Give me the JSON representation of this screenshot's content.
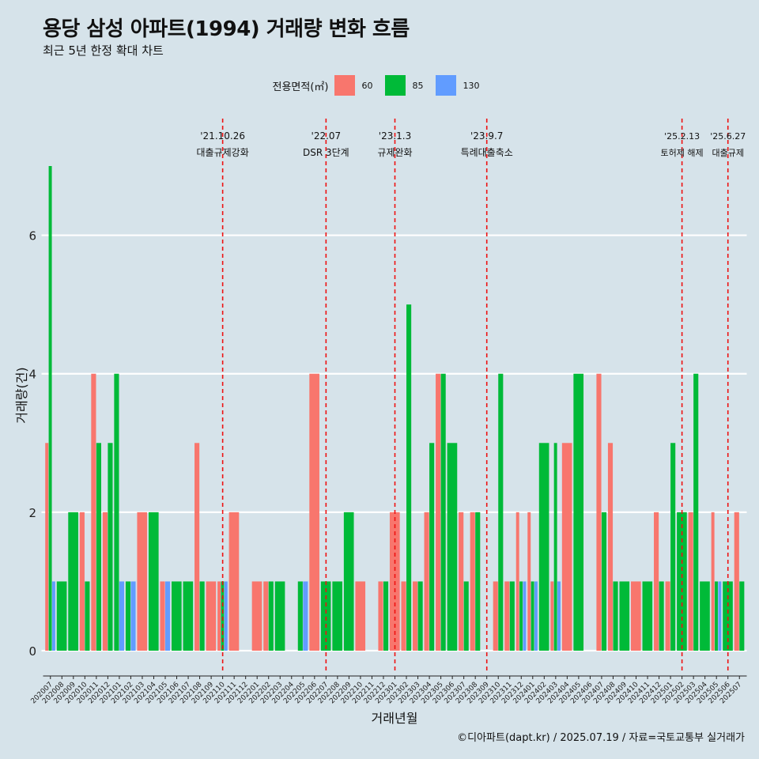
{
  "title": "용당 삼성 아파트(1994) 거래량 변화 흐름",
  "subtitle": "최근 5년 한정 확대 차트",
  "caption": "©디아파트(dapt.kr) / 2025.07.19 / 자료=국토교통부 실거래가",
  "legend": {
    "title": "전용면적(㎡)",
    "items": [
      {
        "label": "60",
        "color": "#F8766D"
      },
      {
        "label": "85",
        "color": "#00BA38"
      },
      {
        "label": "130",
        "color": "#619CFF"
      }
    ]
  },
  "chart_data": {
    "type": "bar",
    "title": "용당 삼성 아파트(1994) 거래량 변화 흐름",
    "subtitle": "최근 5년 한정 확대 차트",
    "xlabel": "거래년월",
    "ylabel": "거래량(건)",
    "ylim": [
      0,
      7
    ],
    "yticks": [
      0,
      2,
      4,
      6
    ],
    "grid": true,
    "legend_position": "top",
    "categories": [
      "202007",
      "202008",
      "202009",
      "202010",
      "202011",
      "202012",
      "202101",
      "202102",
      "202103",
      "202104",
      "202105",
      "202106",
      "202107",
      "202108",
      "202109",
      "202110",
      "202111",
      "202112",
      "202201",
      "202202",
      "202203",
      "202204",
      "202205",
      "202206",
      "202207",
      "202208",
      "202209",
      "202210",
      "202211",
      "202212",
      "202301",
      "202302",
      "202303",
      "202304",
      "202305",
      "202306",
      "202307",
      "202308",
      "202309",
      "202310",
      "202311",
      "202312",
      "202401",
      "202402",
      "202403",
      "202404",
      "202405",
      "202406",
      "202407",
      "202408",
      "202409",
      "202410",
      "202411",
      "202412",
      "202501",
      "202502",
      "202503",
      "202504",
      "202505",
      "202506",
      "202507"
    ],
    "series": [
      {
        "name": "60",
        "color": "#F8766D",
        "values": [
          3,
          0,
          0,
          2,
          4,
          2,
          0,
          0,
          2,
          0,
          1,
          0,
          0,
          3,
          1,
          1,
          2,
          0,
          1,
          1,
          0,
          0,
          0,
          4,
          0,
          0,
          0,
          1,
          0,
          1,
          2,
          1,
          1,
          2,
          4,
          0,
          2,
          2,
          0,
          1,
          1,
          2,
          2,
          0,
          1,
          3,
          0,
          0,
          4,
          3,
          0,
          1,
          0,
          2,
          1,
          0,
          2,
          0,
          2,
          0,
          2
        ]
      },
      {
        "name": "85",
        "color": "#00BA38",
        "values": [
          7,
          1,
          2,
          1,
          3,
          3,
          4,
          1,
          0,
          2,
          0,
          1,
          1,
          1,
          0,
          1,
          0,
          0,
          0,
          1,
          1,
          0,
          1,
          0,
          1,
          1,
          2,
          0,
          0,
          1,
          0,
          5,
          1,
          3,
          4,
          3,
          1,
          2,
          0,
          4,
          1,
          1,
          1,
          3,
          3,
          0,
          4,
          0,
          2,
          1,
          1,
          0,
          1,
          1,
          3,
          2,
          4,
          1,
          1,
          1,
          1
        ]
      },
      {
        "name": "130",
        "color": "#619CFF",
        "values": [
          1,
          0,
          0,
          0,
          0,
          0,
          1,
          1,
          0,
          0,
          1,
          0,
          0,
          0,
          0,
          1,
          0,
          0,
          0,
          0,
          0,
          0,
          1,
          0,
          0,
          0,
          0,
          0,
          0,
          0,
          0,
          0,
          0,
          0,
          0,
          0,
          0,
          0,
          0,
          0,
          0,
          1,
          1,
          0,
          1,
          0,
          0,
          0,
          0,
          0,
          0,
          0,
          0,
          0,
          0,
          0,
          0,
          0,
          1,
          0,
          0
        ]
      }
    ],
    "annotations": [
      {
        "date": "'21.10.26",
        "label": "대출규제강화",
        "x": "202110"
      },
      {
        "date": "'22.07",
        "label": "DSR 3단계",
        "x": "202207"
      },
      {
        "date": "'23.1.3",
        "label": "규제완화",
        "x": "202301"
      },
      {
        "date": "'23.9.7",
        "label": "특례대출축소",
        "x": "202309"
      },
      {
        "date": "'25.2.13",
        "label": "토허제 해제",
        "x": "202502"
      },
      {
        "date": "'25.6.27",
        "label": "대출규제",
        "x": "202506"
      }
    ]
  }
}
